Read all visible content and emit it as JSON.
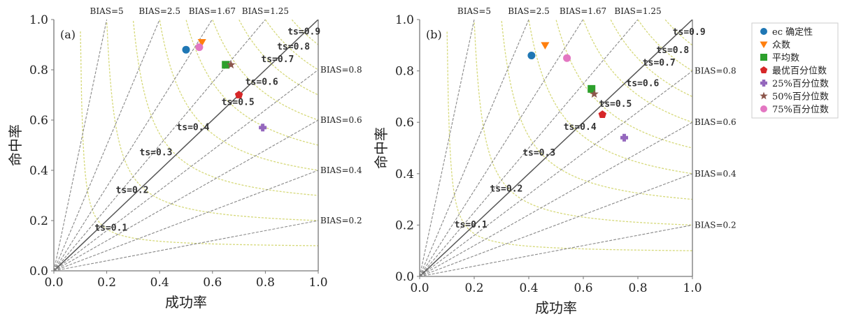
{
  "chart_data": [
    {
      "type": "scatter",
      "panel_label": "(a)",
      "xlabel": "成功率",
      "ylabel": "命中率",
      "xlim": [
        0,
        1
      ],
      "ylim": [
        0,
        1
      ],
      "x_ticks": [
        "0.0",
        "0.2",
        "0.4",
        "0.6",
        "0.8",
        "1.0"
      ],
      "y_ticks": [
        "0.0",
        "0.2",
        "0.4",
        "0.6",
        "0.8",
        "1.0"
      ],
      "bias_lines": [
        {
          "bias": 5,
          "label": "BIAS=5"
        },
        {
          "bias": 2.5,
          "label": "BIAS=2.5"
        },
        {
          "bias": 1.67,
          "label": "BIAS=1.67"
        },
        {
          "bias": 1.25,
          "label": "BIAS=1.25"
        },
        {
          "bias": 1.0,
          "label": ""
        },
        {
          "bias": 0.8,
          "label": "BIAS=0.8"
        },
        {
          "bias": 0.6,
          "label": "BIAS=0.6"
        },
        {
          "bias": 0.4,
          "label": "BIAS=0.4"
        },
        {
          "bias": 0.2,
          "label": "BIAS=0.2"
        }
      ],
      "ts_curves": [
        {
          "ts": 0.1,
          "label": "ts=0.1"
        },
        {
          "ts": 0.2,
          "label": "ts=0.2"
        },
        {
          "ts": 0.3,
          "label": "ts=0.3"
        },
        {
          "ts": 0.4,
          "label": "ts=0.4"
        },
        {
          "ts": 0.5,
          "label": "ts=0.5"
        },
        {
          "ts": 0.6,
          "label": "ts=0.6"
        },
        {
          "ts": 0.7,
          "label": "ts=0.7"
        },
        {
          "ts": 0.8,
          "label": "ts=0.8"
        },
        {
          "ts": 0.9,
          "label": "ts=0.9"
        }
      ],
      "points": [
        {
          "series": "ec确定性",
          "x": 0.5,
          "y": 0.88
        },
        {
          "series": "众数",
          "x": 0.56,
          "y": 0.91
        },
        {
          "series": "平均数",
          "x": 0.65,
          "y": 0.82
        },
        {
          "series": "最优百分位数",
          "x": 0.7,
          "y": 0.7
        },
        {
          "series": "25%百分位数",
          "x": 0.79,
          "y": 0.57
        },
        {
          "series": "50%百分位数",
          "x": 0.67,
          "y": 0.82
        },
        {
          "series": "75%百分位数",
          "x": 0.55,
          "y": 0.89
        }
      ]
    },
    {
      "type": "scatter",
      "panel_label": "(b)",
      "xlabel": "成功率",
      "ylabel": "命中率",
      "xlim": [
        0,
        1
      ],
      "ylim": [
        0,
        1
      ],
      "x_ticks": [
        "0.0",
        "0.2",
        "0.4",
        "0.6",
        "0.8",
        "1.0"
      ],
      "y_ticks": [
        "0.0",
        "0.2",
        "0.4",
        "0.6",
        "0.8",
        "1.0"
      ],
      "bias_lines": [
        {
          "bias": 5,
          "label": "BIAS=5"
        },
        {
          "bias": 2.5,
          "label": "BIAS=2.5"
        },
        {
          "bias": 1.67,
          "label": "BIAS=1.67"
        },
        {
          "bias": 1.25,
          "label": "BIAS=1.25"
        },
        {
          "bias": 1.0,
          "label": ""
        },
        {
          "bias": 0.8,
          "label": "BIAS=0.8"
        },
        {
          "bias": 0.6,
          "label": "BIAS=0.6"
        },
        {
          "bias": 0.4,
          "label": "BIAS=0.4"
        },
        {
          "bias": 0.2,
          "label": "BIAS=0.2"
        }
      ],
      "ts_curves": [
        {
          "ts": 0.1,
          "label": "ts=0.1"
        },
        {
          "ts": 0.2,
          "label": "ts=0.2"
        },
        {
          "ts": 0.3,
          "label": "ts=0.3"
        },
        {
          "ts": 0.4,
          "label": "ts=0.4"
        },
        {
          "ts": 0.5,
          "label": "ts=0.5"
        },
        {
          "ts": 0.6,
          "label": "ts=0.6"
        },
        {
          "ts": 0.7,
          "label": "ts=0.7"
        },
        {
          "ts": 0.8,
          "label": "ts=0.8"
        },
        {
          "ts": 0.9,
          "label": "ts=0.9"
        }
      ],
      "points": [
        {
          "series": "ec确定性",
          "x": 0.41,
          "y": 0.86
        },
        {
          "series": "众数",
          "x": 0.46,
          "y": 0.9
        },
        {
          "series": "平均数",
          "x": 0.63,
          "y": 0.73
        },
        {
          "series": "最优百分位数",
          "x": 0.67,
          "y": 0.63
        },
        {
          "series": "25%百分位数",
          "x": 0.75,
          "y": 0.54
        },
        {
          "series": "50%百分位数",
          "x": 0.64,
          "y": 0.71
        },
        {
          "series": "75%百分位数",
          "x": 0.54,
          "y": 0.85
        }
      ]
    }
  ],
  "legend": [
    {
      "series": "ec确定性",
      "label": "ec 确定性",
      "marker": "circle",
      "color": "#1f77b4"
    },
    {
      "series": "众数",
      "label": "众数",
      "marker": "triangle-down",
      "color": "#ff7f0e"
    },
    {
      "series": "平均数",
      "label": "平均数",
      "marker": "square",
      "color": "#2ca02c"
    },
    {
      "series": "最优百分位数",
      "label": "最优百分位数",
      "marker": "pentagon",
      "color": "#d62728"
    },
    {
      "series": "25%百分位数",
      "label": "25%百分位数",
      "marker": "plus",
      "color": "#9467bd"
    },
    {
      "series": "50%百分位数",
      "label": "50%百分位数",
      "marker": "star",
      "color": "#8c564b"
    },
    {
      "series": "75%百分位数",
      "label": "75%百分位数",
      "marker": "circle",
      "color": "#e377c2"
    }
  ],
  "colors": {
    "bias_line": "#888888",
    "bias_line_unity": "#555555",
    "ts_curve": "#d6d97a",
    "axis": "#777777"
  }
}
